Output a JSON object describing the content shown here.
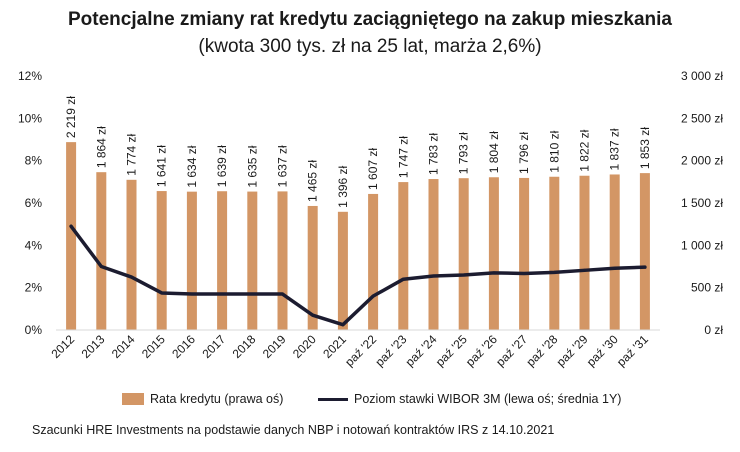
{
  "title": "Potencjalne zmiany rat kredytu zaciągniętego na zakup mieszkania",
  "subtitle": "(kwota 300 tys. zł na 25 lat, marża 2,6%)",
  "source": "Szacunki HRE Investments na podstawie danych NBP i notowań kontraktów IRS z 14.10.2021",
  "colors": {
    "bar": "#d39665",
    "line": "#1c1c30"
  },
  "chart_data": {
    "type": "bar",
    "categories": [
      "2012",
      "2013",
      "2014",
      "2015",
      "2016",
      "2017",
      "2018",
      "2019",
      "2020",
      "2021",
      "paź '22",
      "paź '23",
      "paź '24",
      "paź '25",
      "paź '26",
      "paź '27",
      "paź '28",
      "paź '29",
      "paź '30",
      "paź '31"
    ],
    "series": [
      {
        "name": "Rata kredytu (prawa oś)",
        "type": "bar",
        "axis": "right",
        "values": [
          2219,
          1864,
          1774,
          1641,
          1634,
          1639,
          1635,
          1637,
          1465,
          1396,
          1607,
          1747,
          1783,
          1793,
          1804,
          1796,
          1810,
          1822,
          1837,
          1853
        ],
        "labels": [
          "2 219 zł",
          "1 864 zł",
          "1 774 zł",
          "1 641 zł",
          "1 634 zł",
          "1 639 zł",
          "1 635 zł",
          "1 637 zł",
          "1 465 zł",
          "1 396 zł",
          "1 607 zł",
          "1 747 zł",
          "1 783 zł",
          "1 793 zł",
          "1 804 zł",
          "1 796 zł",
          "1 810 zł",
          "1 822 zł",
          "1 837 zł",
          "1 853 zł"
        ]
      },
      {
        "name": "Poziom stawki WIBOR 3M (lewa oś; średnia 1Y)",
        "type": "line",
        "axis": "left",
        "values": [
          4.9,
          3.0,
          2.5,
          1.75,
          1.7,
          1.7,
          1.7,
          1.7,
          0.7,
          0.25,
          1.6,
          2.4,
          2.55,
          2.6,
          2.7,
          2.67,
          2.72,
          2.82,
          2.92,
          2.97
        ]
      }
    ],
    "y_left": {
      "min": 0,
      "max": 12,
      "ticks": [
        "0%",
        "2%",
        "4%",
        "6%",
        "8%",
        "10%",
        "12%"
      ]
    },
    "y_right": {
      "min": 0,
      "max": 3000,
      "ticks": [
        "0 zł",
        "500 zł",
        "1 000 zł",
        "1 500 zł",
        "2 000 zł",
        "2 500 zł",
        "3 000 zł"
      ]
    },
    "grid": false,
    "legend_position": "bottom"
  }
}
